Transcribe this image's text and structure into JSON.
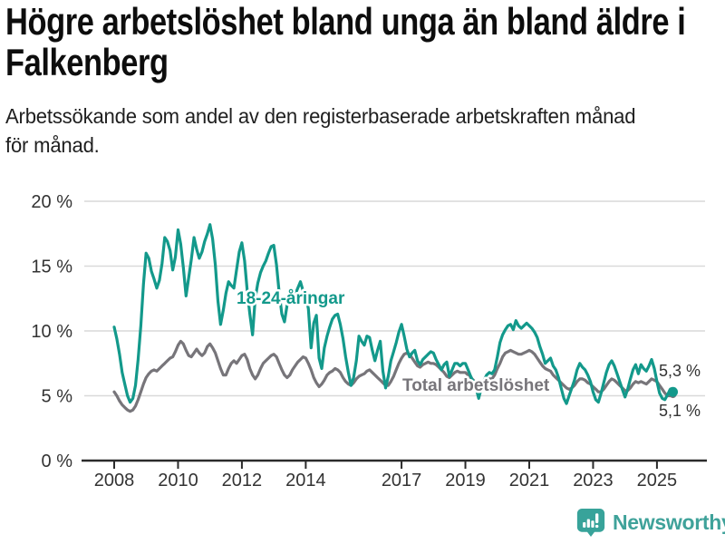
{
  "header": {
    "title_lines": [
      "Högre arbetslöshet bland unga än bland äldre i",
      "Falkenberg"
    ],
    "subtitle_lines": [
      "Arbetssökande som andel av den registerbaserade arbetskraften månad",
      "för månad."
    ]
  },
  "colors": {
    "youth_line": "#13998b",
    "total_line": "#77757a",
    "gridline": "#d9d9d9",
    "axis": "#2b2b2b",
    "tick_text": "#333333",
    "brand_teal": "#3fa29a"
  },
  "chart_data": {
    "type": "line",
    "title": "Högre arbetslöshet bland unga än bland äldre i Falkenberg",
    "subtitle": "Arbetssökande som andel av den registerbaserade arbetskraften månad för månad.",
    "x_start": "2008-01",
    "points_per_year": 12,
    "grid": true,
    "y_axis": {
      "min": 0,
      "max": 20,
      "ticks": [
        {
          "value": 0,
          "label": "0 %"
        },
        {
          "value": 5,
          "label": "5 %"
        },
        {
          "value": 10,
          "label": "10 %"
        },
        {
          "value": 15,
          "label": "15 %"
        },
        {
          "value": 20,
          "label": "20 %"
        }
      ]
    },
    "x_axis": {
      "ticks": [
        {
          "year": 2008,
          "label": "2008"
        },
        {
          "year": 2010,
          "label": "2010"
        },
        {
          "year": 2012,
          "label": "2012"
        },
        {
          "year": 2014,
          "label": "2014"
        },
        {
          "year": 2017,
          "label": "2017"
        },
        {
          "year": 2019,
          "label": "2019"
        },
        {
          "year": 2021,
          "label": "2021"
        },
        {
          "year": 2023,
          "label": "2023"
        },
        {
          "year": 2025,
          "label": "2025"
        }
      ]
    },
    "series": [
      {
        "name": "Total arbetslöshet",
        "color": "#77757a",
        "end_value_label": "5,1 %",
        "values": [
          5.3,
          5.0,
          4.6,
          4.3,
          4.1,
          3.9,
          3.8,
          3.9,
          4.2,
          4.7,
          5.3,
          5.9,
          6.4,
          6.7,
          6.9,
          7.0,
          6.9,
          7.1,
          7.3,
          7.5,
          7.7,
          7.9,
          8.0,
          8.4,
          8.9,
          9.2,
          9.0,
          8.5,
          8.1,
          8.0,
          8.3,
          8.6,
          8.3,
          8.1,
          8.3,
          8.8,
          9.0,
          8.7,
          8.3,
          7.7,
          7.1,
          6.6,
          6.6,
          7.1,
          7.5,
          7.7,
          7.5,
          7.8,
          8.1,
          8.2,
          7.8,
          7.1,
          6.6,
          6.3,
          6.6,
          7.1,
          7.5,
          7.7,
          7.9,
          8.1,
          8.2,
          8.0,
          7.5,
          7.0,
          6.6,
          6.4,
          6.6,
          7.0,
          7.3,
          7.6,
          7.8,
          8.0,
          7.9,
          7.5,
          7.0,
          6.4,
          6.0,
          5.7,
          5.9,
          6.2,
          6.6,
          6.8,
          6.9,
          7.1,
          7.0,
          6.8,
          6.4,
          6.1,
          5.9,
          5.8,
          6.0,
          6.3,
          6.5,
          6.6,
          6.7,
          6.9,
          7.0,
          6.8,
          6.6,
          6.4,
          6.2,
          6.0,
          5.8,
          5.8,
          6.1,
          6.5,
          7.0,
          7.5,
          7.9,
          8.2,
          8.3,
          8.2,
          7.9,
          7.6,
          7.3,
          7.2,
          7.4,
          7.5,
          7.6,
          7.5,
          7.5,
          7.4,
          7.2,
          7.0,
          6.8,
          6.5,
          6.4,
          6.6,
          6.8,
          6.9,
          6.8,
          6.8,
          6.8,
          6.6,
          6.4,
          6.2,
          6.0,
          5.9,
          6.0,
          6.2,
          6.3,
          6.3,
          6.3,
          6.6,
          7.1,
          7.5,
          8.0,
          8.3,
          8.4,
          8.5,
          8.4,
          8.3,
          8.2,
          8.2,
          8.3,
          8.4,
          8.5,
          8.4,
          8.2,
          7.9,
          7.6,
          7.3,
          7.1,
          7.0,
          6.9,
          6.6,
          6.4,
          6.2,
          6.0,
          5.8,
          5.6,
          5.5,
          5.6,
          5.8,
          6.1,
          6.3,
          6.3,
          6.2,
          6.0,
          5.9,
          5.7,
          5.5,
          5.3,
          5.3,
          5.5,
          5.8,
          6.1,
          6.3,
          6.2,
          6.0,
          5.8,
          5.6,
          5.4,
          5.4,
          5.6,
          5.9,
          6.1,
          6.0,
          6.1,
          6.0,
          5.9,
          6.1,
          6.3,
          6.2,
          6.1,
          5.8,
          5.5,
          5.2,
          5.0,
          5.0,
          5.1
        ]
      },
      {
        "name": "18-24-åringar",
        "color": "#13998b",
        "end_value_label": "5,3 %",
        "values": [
          10.3,
          9.4,
          8.2,
          6.8,
          5.9,
          5.0,
          4.5,
          4.8,
          5.8,
          7.8,
          10.4,
          13.6,
          16.0,
          15.6,
          14.6,
          14.0,
          13.3,
          13.9,
          15.2,
          17.2,
          16.9,
          16.2,
          14.7,
          15.7,
          17.8,
          16.7,
          14.9,
          12.7,
          14.1,
          15.5,
          17.2,
          16.3,
          15.6,
          16.1,
          16.9,
          17.5,
          18.2,
          17.1,
          15.1,
          12.3,
          10.5,
          11.6,
          12.9,
          13.8,
          13.5,
          13.3,
          14.7,
          16.1,
          16.8,
          15.4,
          13.1,
          11.3,
          9.7,
          12.5,
          13.7,
          14.5,
          15.0,
          15.4,
          16.0,
          16.5,
          16.6,
          15.1,
          13.0,
          11.3,
          10.7,
          12.0,
          12.7,
          12.2,
          12.8,
          13.3,
          13.8,
          13.1,
          12.8,
          11.7,
          8.7,
          10.6,
          11.2,
          7.9,
          7.1,
          8.7,
          9.6,
          10.3,
          10.9,
          11.2,
          11.3,
          10.5,
          9.4,
          8.0,
          6.8,
          5.8,
          6.4,
          7.7,
          9.6,
          9.2,
          8.9,
          9.6,
          9.5,
          8.5,
          7.7,
          8.5,
          9.2,
          6.9,
          5.6,
          6.5,
          7.7,
          8.4,
          9.1,
          9.9,
          10.5,
          9.6,
          8.6,
          8.0,
          8.3,
          8.5,
          7.7,
          7.4,
          7.8,
          8.0,
          8.2,
          8.4,
          8.3,
          7.8,
          7.4,
          7.0,
          7.4,
          7.6,
          6.5,
          7.0,
          7.5,
          7.5,
          7.3,
          7.5,
          7.5,
          7.0,
          6.5,
          6.1,
          5.6,
          4.8,
          5.6,
          6.2,
          6.6,
          6.8,
          6.7,
          7.0,
          8.0,
          9.1,
          9.7,
          10.1,
          10.4,
          10.5,
          10.1,
          10.8,
          10.4,
          10.2,
          10.4,
          10.6,
          10.4,
          10.2,
          9.9,
          9.5,
          8.8,
          8.2,
          7.5,
          7.7,
          7.9,
          7.3,
          7.0,
          6.4,
          5.6,
          4.8,
          4.4,
          5.0,
          5.6,
          6.2,
          7.0,
          7.5,
          7.2,
          7.0,
          6.6,
          6.1,
          5.3,
          4.7,
          4.5,
          5.2,
          6.0,
          6.8,
          7.4,
          7.7,
          7.3,
          6.7,
          6.1,
          5.5,
          4.9,
          5.5,
          6.3,
          7.0,
          7.4,
          6.7,
          7.4,
          7.1,
          6.9,
          7.3,
          7.8,
          7.1,
          6.1,
          5.2,
          4.8,
          4.7,
          5.1,
          5.5,
          5.3
        ]
      }
    ],
    "annotations": {
      "youth_label": "18-24-åringar",
      "total_label": "Total arbetslöshet",
      "end_label_youth": "5,3 %",
      "end_label_total": "5,1 %"
    }
  },
  "footer": {
    "brand": "Newsworthy"
  }
}
